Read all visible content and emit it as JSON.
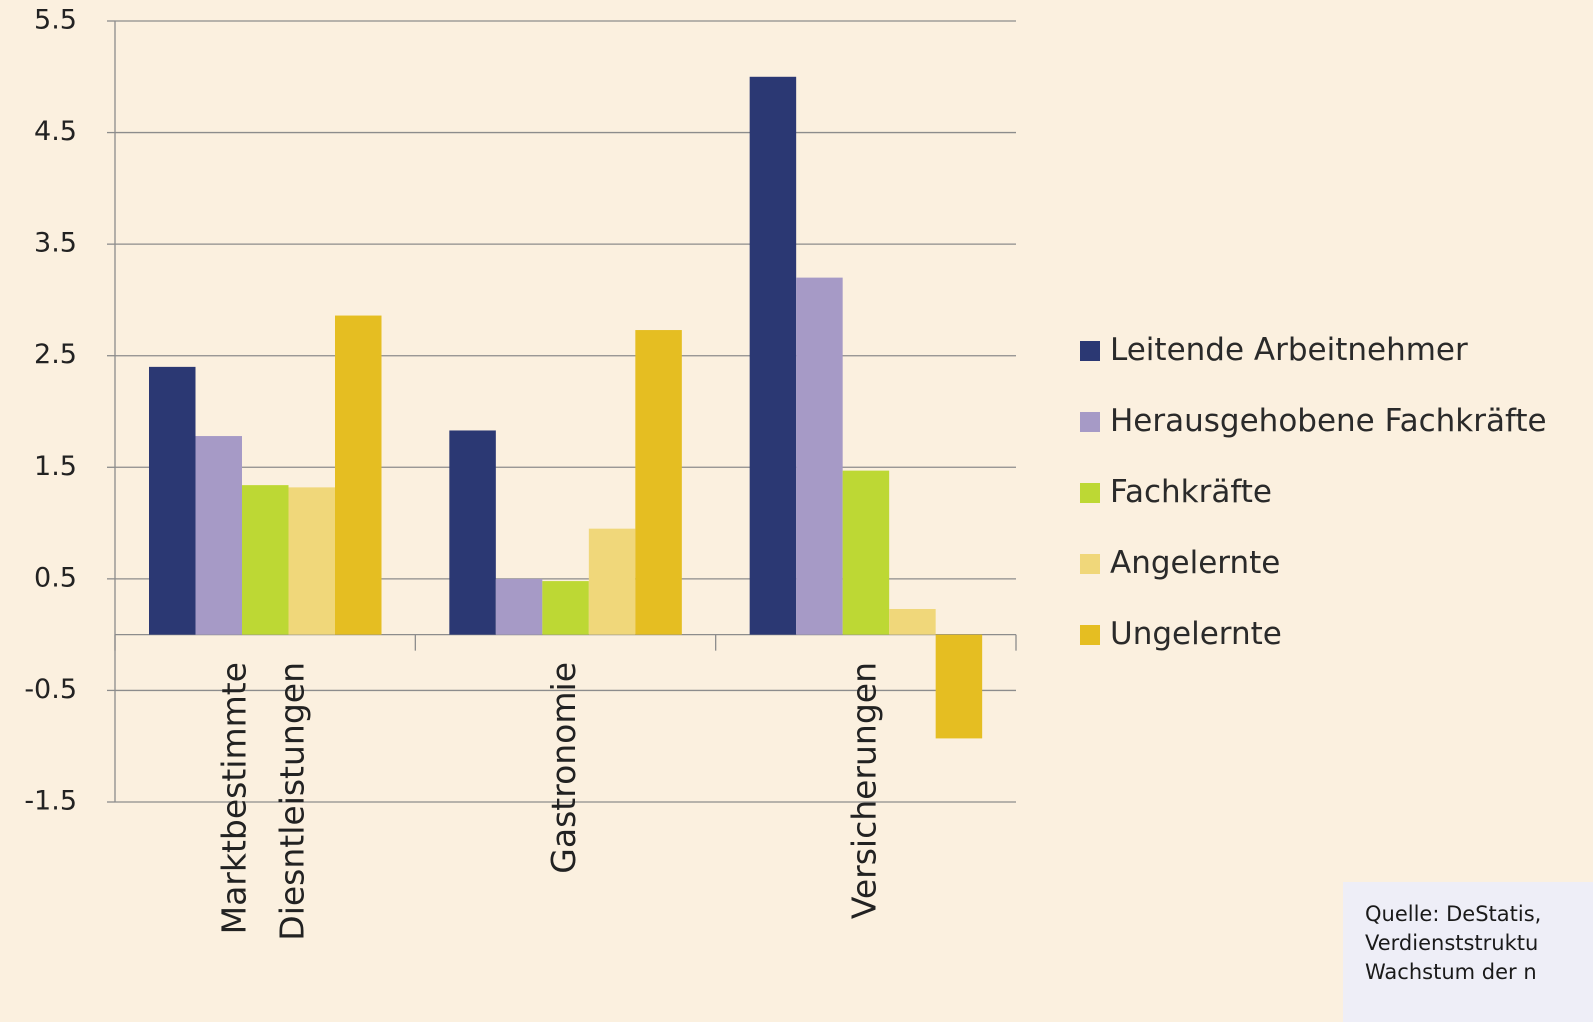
{
  "chart_data": {
    "type": "bar",
    "categories": [
      [
        "Marktbestimmte",
        "Diesntleistungen"
      ],
      [
        "Gastronomie"
      ],
      [
        "Versicherungen"
      ]
    ],
    "series": [
      {
        "name": "Leitende Arbeitnehmer",
        "color": "#2B3873",
        "values": [
          2.4,
          1.83,
          5.0
        ]
      },
      {
        "name": "Herausgehobene Fachkräfte",
        "color": "#A69AC6",
        "values": [
          1.78,
          0.5,
          3.2
        ]
      },
      {
        "name": "Fachkräfte",
        "color": "#BDD834",
        "values": [
          1.34,
          0.48,
          1.47
        ]
      },
      {
        "name": "Angelernte",
        "color": "#F0D77A",
        "values": [
          1.32,
          0.95,
          0.23
        ]
      },
      {
        "name": "Ungelernte",
        "color": "#E5BE22",
        "values": [
          2.86,
          2.73,
          -0.93
        ]
      }
    ],
    "yticks": [
      "5.5",
      "4.5",
      "3.5",
      "2.5",
      "1.5",
      "0.5",
      "-0.5",
      "-1.5"
    ],
    "ylim": [
      -1.5,
      5.5
    ],
    "grid": true,
    "legend_position": "right"
  },
  "source": {
    "lines": [
      "Quelle: DeStatis,",
      "Verdienststruktu",
      "Wachstum der n"
    ]
  }
}
